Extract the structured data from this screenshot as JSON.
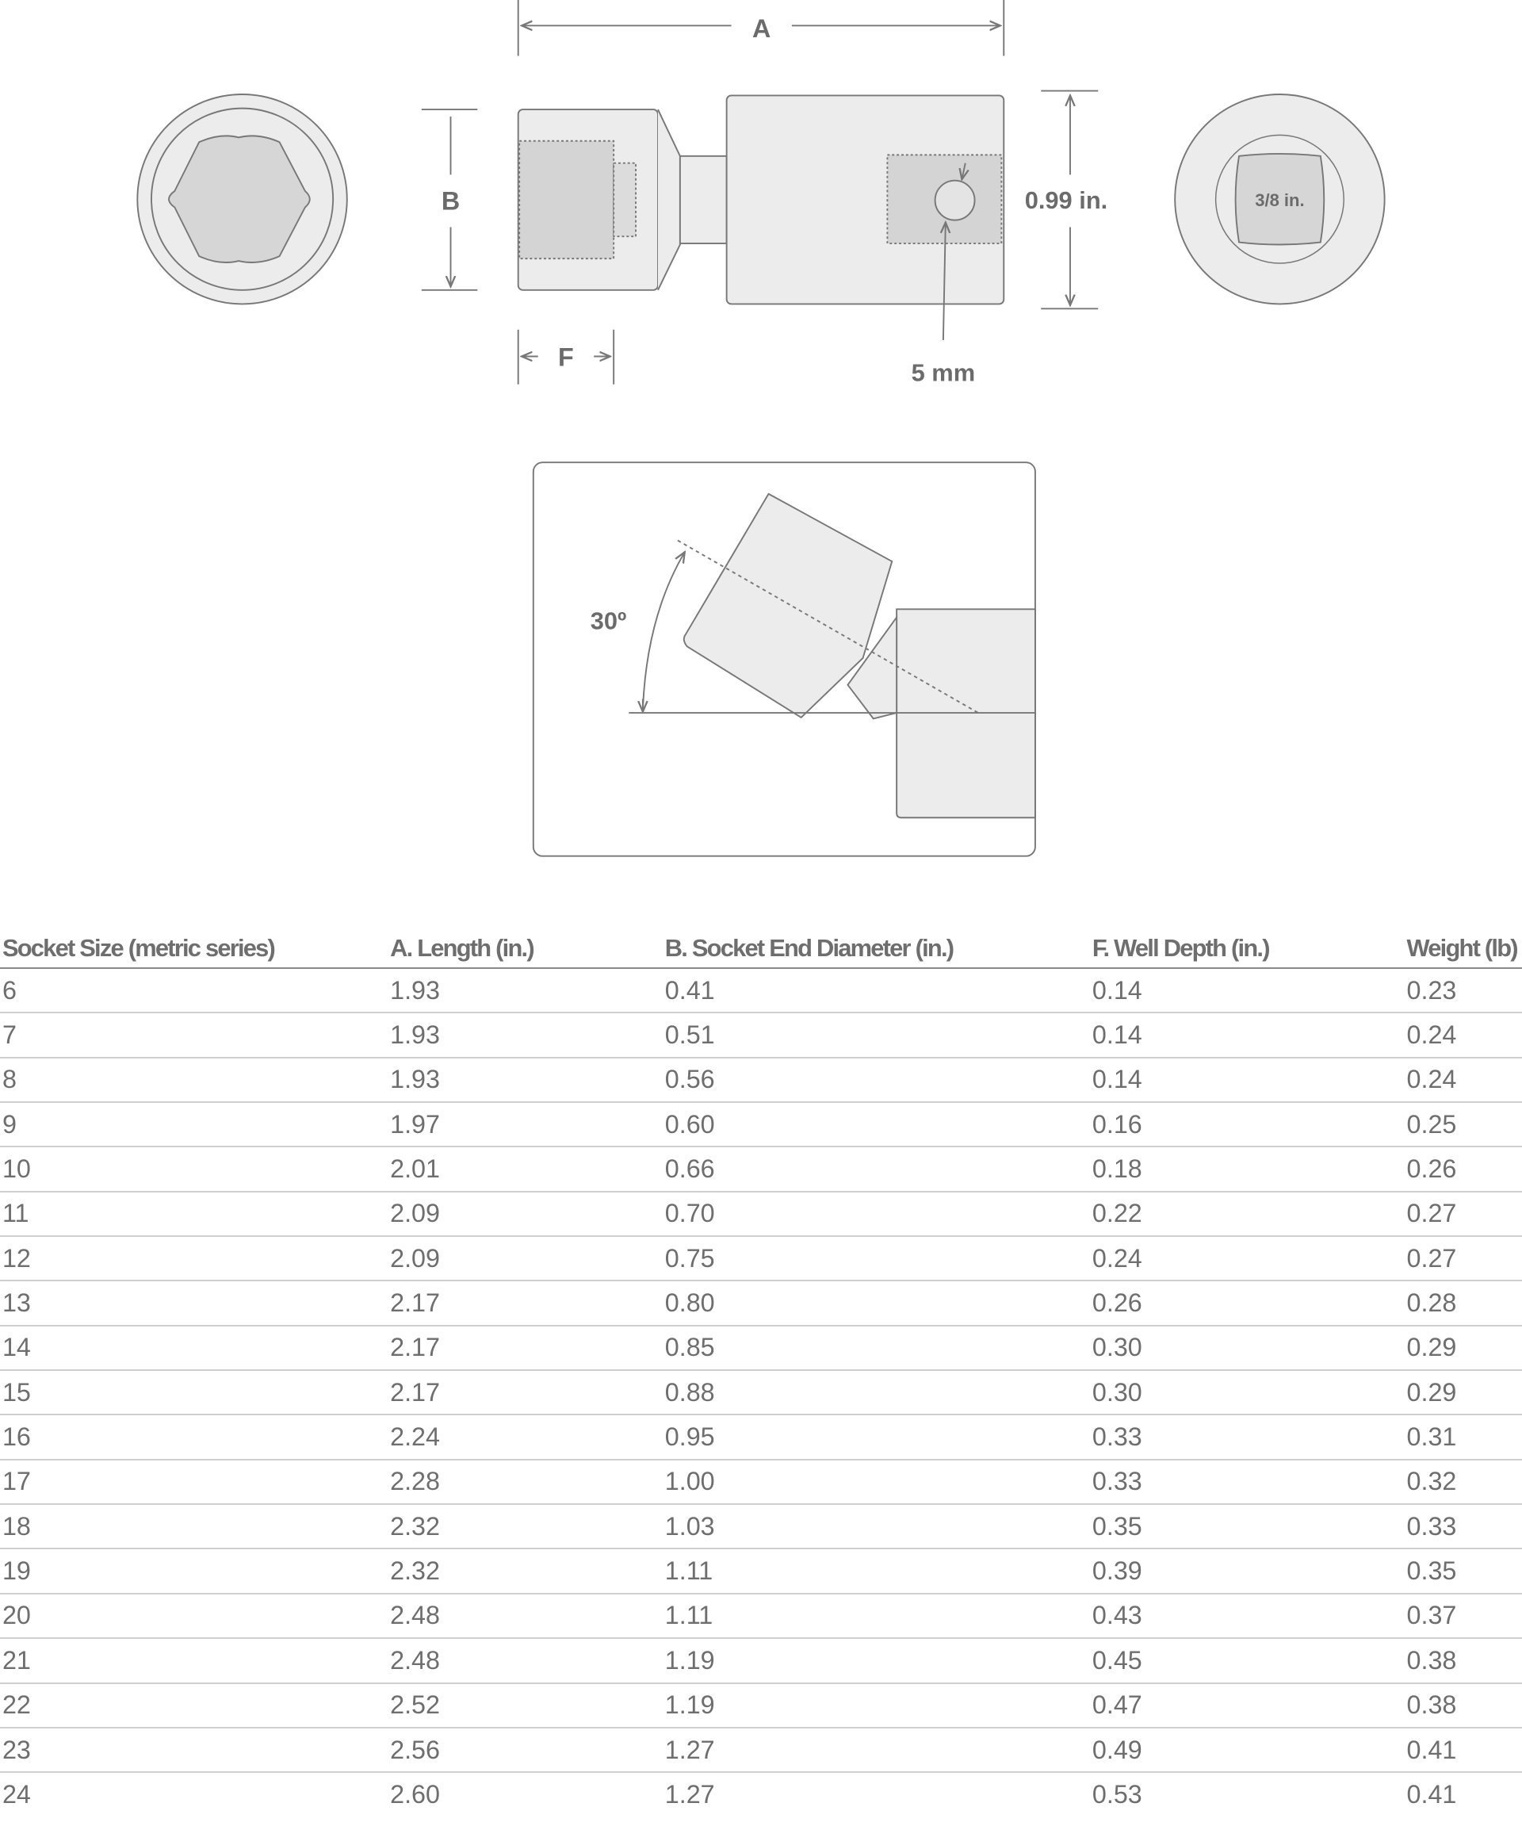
{
  "diagram": {
    "label_a": "A",
    "label_b": "B",
    "label_f": "F",
    "outer_diameter": "0.99 in.",
    "pin": "5 mm",
    "drive": "3/8 in.",
    "angle": "30º"
  },
  "table": {
    "headers": [
      "Socket Size (metric series)",
      "A. Length (in.)",
      "B. Socket End Diameter (in.)",
      "F. Well Depth (in.)",
      "Weight (lb)"
    ],
    "rows": [
      [
        "6",
        "1.93",
        "0.41",
        "0.14",
        "0.23"
      ],
      [
        "7",
        "1.93",
        "0.51",
        "0.14",
        "0.24"
      ],
      [
        "8",
        "1.93",
        "0.56",
        "0.14",
        "0.24"
      ],
      [
        "9",
        "1.97",
        "0.60",
        "0.16",
        "0.25"
      ],
      [
        "10",
        "2.01",
        "0.66",
        "0.18",
        "0.26"
      ],
      [
        "11",
        "2.09",
        "0.70",
        "0.22",
        "0.27"
      ],
      [
        "12",
        "2.09",
        "0.75",
        "0.24",
        "0.27"
      ],
      [
        "13",
        "2.17",
        "0.80",
        "0.26",
        "0.28"
      ],
      [
        "14",
        "2.17",
        "0.85",
        "0.30",
        "0.29"
      ],
      [
        "15",
        "2.17",
        "0.88",
        "0.30",
        "0.29"
      ],
      [
        "16",
        "2.24",
        "0.95",
        "0.33",
        "0.31"
      ],
      [
        "17",
        "2.28",
        "1.00",
        "0.33",
        "0.32"
      ],
      [
        "18",
        "2.32",
        "1.03",
        "0.35",
        "0.33"
      ],
      [
        "19",
        "2.32",
        "1.11",
        "0.39",
        "0.35"
      ],
      [
        "20",
        "2.48",
        "1.11",
        "0.43",
        "0.37"
      ],
      [
        "21",
        "2.48",
        "1.19",
        "0.45",
        "0.38"
      ],
      [
        "22",
        "2.52",
        "1.19",
        "0.47",
        "0.38"
      ],
      [
        "23",
        "2.56",
        "1.27",
        "0.49",
        "0.41"
      ],
      [
        "24",
        "2.60",
        "1.27",
        "0.53",
        "0.41"
      ]
    ]
  }
}
